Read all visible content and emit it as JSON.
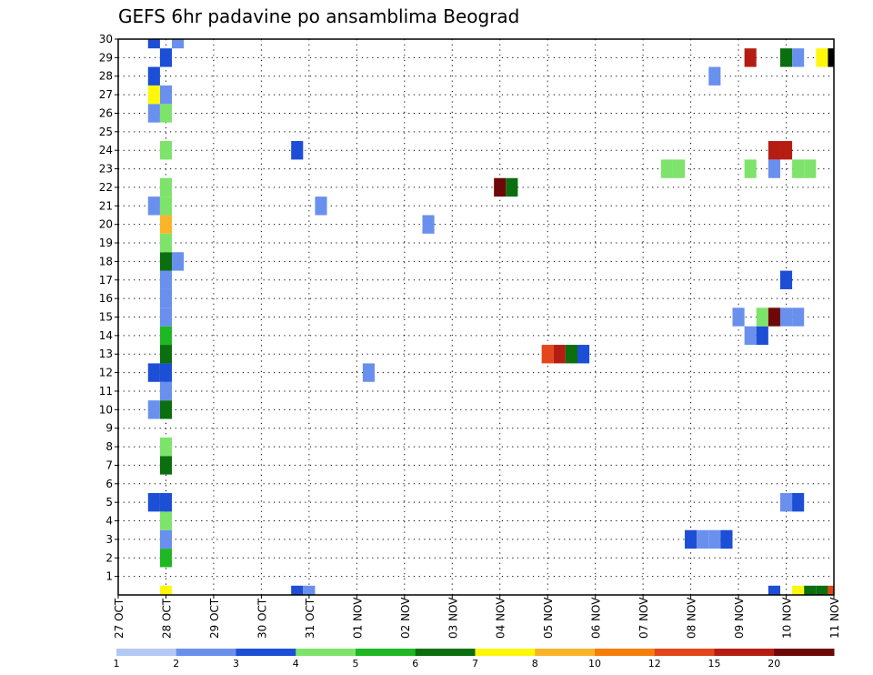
{
  "chart_data": {
    "type": "heatmap",
    "title": "GEFS 6hr padavine po ansamblima Beograd",
    "xlabel": "",
    "ylabel": "",
    "x_tick_labels": [
      "27 OCT",
      "28 OCT",
      "29 OCT",
      "30 OCT",
      "31 OCT",
      "01 NOV",
      "02 NOV",
      "03 NOV",
      "04 NOV",
      "05 NOV",
      "06 NOV",
      "07 NOV",
      "08 NOV",
      "09 NOV",
      "10 NOV",
      "11 NOV"
    ],
    "y_tick_labels": [
      "1",
      "2",
      "3",
      "4",
      "5",
      "6",
      "7",
      "8",
      "9",
      "10",
      "11",
      "12",
      "13",
      "14",
      "15",
      "16",
      "17",
      "18",
      "19",
      "20",
      "21",
      "22",
      "23",
      "24",
      "25",
      "26",
      "27",
      "28",
      "29",
      "30"
    ],
    "xlim_days": [
      0,
      15
    ],
    "ylim": [
      0,
      30
    ],
    "time_step_hours": 6,
    "grid": true,
    "colorbar": {
      "levels": [
        "1",
        "2",
        "3",
        "4",
        "5",
        "6",
        "7",
        "8",
        "10",
        "12",
        "15",
        "20"
      ],
      "colors": [
        "#b4c8f5",
        "#6a90ee",
        "#1c4ed6",
        "#7ee36b",
        "#1fb824",
        "#0b6e0f",
        "#fff70a",
        "#f9b52a",
        "#f57e0b",
        "#e2461a",
        "#b61d12",
        "#6e0808"
      ]
    },
    "cells": [
      [
        1.0,
        0,
        6
      ],
      [
        1.0,
        2,
        4
      ],
      [
        1.0,
        3,
        1
      ],
      [
        1.0,
        4,
        3
      ],
      [
        1.0,
        5,
        2
      ],
      [
        1.0,
        7,
        5
      ],
      [
        1.0,
        8,
        3
      ],
      [
        1.0,
        10,
        5
      ],
      [
        1.0,
        11,
        1
      ],
      [
        1.0,
        12,
        2
      ],
      [
        1.0,
        13,
        5
      ],
      [
        1.0,
        14,
        4
      ],
      [
        1.0,
        15,
        1
      ],
      [
        1.0,
        16,
        1
      ],
      [
        1.0,
        17,
        1
      ],
      [
        1.0,
        18,
        5
      ],
      [
        1.0,
        19,
        3
      ],
      [
        1.0,
        20,
        7
      ],
      [
        1.0,
        21,
        3
      ],
      [
        1.0,
        22,
        3
      ],
      [
        1.0,
        24,
        3
      ],
      [
        1.0,
        26,
        3
      ],
      [
        1.0,
        27,
        1
      ],
      [
        1.0,
        29,
        2
      ],
      [
        0.75,
        5,
        2
      ],
      [
        0.75,
        10,
        1
      ],
      [
        0.75,
        12,
        2
      ],
      [
        0.75,
        21,
        1
      ],
      [
        0.75,
        26,
        1
      ],
      [
        0.75,
        27,
        6
      ],
      [
        0.75,
        28,
        2
      ],
      [
        0.75,
        30,
        2
      ],
      [
        1.25,
        18,
        1
      ],
      [
        1.25,
        30,
        1
      ],
      [
        3.75,
        0,
        2
      ],
      [
        3.75,
        24,
        2
      ],
      [
        4.0,
        0,
        1
      ],
      [
        4.25,
        21,
        1
      ],
      [
        5.25,
        12,
        1
      ],
      [
        6.5,
        20,
        1
      ],
      [
        8.0,
        22,
        11
      ],
      [
        8.25,
        22,
        5
      ],
      [
        9.0,
        13,
        9
      ],
      [
        9.25,
        13,
        10
      ],
      [
        9.5,
        13,
        5
      ],
      [
        9.75,
        13,
        2
      ],
      [
        11.5,
        23,
        3
      ],
      [
        11.75,
        23,
        3
      ],
      [
        12.0,
        3,
        2
      ],
      [
        12.25,
        3,
        1
      ],
      [
        12.5,
        3,
        1
      ],
      [
        12.75,
        3,
        2
      ],
      [
        12.5,
        28,
        1
      ],
      [
        13.0,
        15,
        1
      ],
      [
        13.25,
        14,
        1
      ],
      [
        13.5,
        14,
        2
      ],
      [
        13.25,
        23,
        3
      ],
      [
        13.25,
        29,
        10
      ],
      [
        13.5,
        15,
        3
      ],
      [
        13.75,
        15,
        11
      ],
      [
        13.75,
        0,
        2
      ],
      [
        13.75,
        23,
        1
      ],
      [
        13.75,
        24,
        10
      ],
      [
        14.0,
        24,
        10
      ],
      [
        14.0,
        5,
        1
      ],
      [
        14.25,
        5,
        2
      ],
      [
        14.0,
        15,
        1
      ],
      [
        14.25,
        15,
        1
      ],
      [
        14.0,
        17,
        2
      ],
      [
        14.0,
        29,
        5
      ],
      [
        14.25,
        29,
        1
      ],
      [
        14.25,
        0,
        6
      ],
      [
        14.5,
        0,
        5
      ],
      [
        14.75,
        0,
        5
      ],
      [
        15.0,
        0,
        9
      ],
      [
        14.25,
        23,
        3
      ],
      [
        14.5,
        23,
        3
      ],
      [
        14.75,
        29,
        6
      ],
      [
        15.0,
        29,
        12
      ]
    ]
  }
}
